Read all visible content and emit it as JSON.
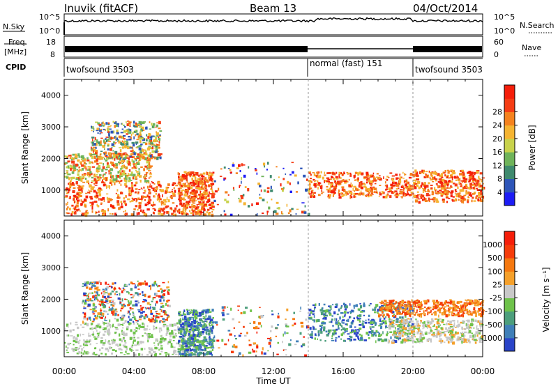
{
  "header": {
    "station": "Inuvik (fitACF)",
    "beam": "Beam 13",
    "date": "04/Oct/2014"
  },
  "status_panels": {
    "nsky": {
      "label": "N.Sky",
      "tick_top": "10^5",
      "tick_bottom": "10^0"
    },
    "nsearch": {
      "label": "N.Search",
      "tick_top": "10^5",
      "tick_bottom": "10^0"
    },
    "freq": {
      "label_line1": "Freq.",
      "label_line2": "[MHz]",
      "tick_top": "18",
      "tick_bottom": "8"
    },
    "nave": {
      "label": "Nave",
      "tick_top": "60",
      "tick_bottom": "0"
    },
    "cpid": {
      "label": "CPID",
      "modes": [
        {
          "name": "twofsound 3503",
          "start_hour": 0,
          "end_hour": 14
        },
        {
          "name": "normal (fast) 151",
          "start_hour": 14,
          "end_hour": 20
        },
        {
          "name": "twofsound 3503",
          "start_hour": 20,
          "end_hour": 24
        }
      ]
    }
  },
  "axes": {
    "ylabel": "Slant Range [km]",
    "xlabel": "Time UT",
    "x_ticks": [
      "00:00",
      "04:00",
      "08:00",
      "12:00",
      "16:00",
      "20:00",
      "00:00"
    ],
    "y_ticks": [
      "1000",
      "2000",
      "3000",
      "4000"
    ]
  },
  "chart_data": [
    {
      "type": "heatmap",
      "panel": "power",
      "xlabel": "",
      "ylabel": "Slant Range [km]",
      "x_range_hours": [
        0,
        24
      ],
      "ylim_km": [
        180,
        4500
      ],
      "colorbar": {
        "label": "Power [dB]",
        "ticks": [
          "4",
          "8",
          "12",
          "16",
          "20",
          "24",
          "28"
        ],
        "colors": [
          "#1c1cf5",
          "#2d55b8",
          "#3f8a6e",
          "#6fb35a",
          "#c8d24b",
          "#f5b432",
          "#f5821e",
          "#f53c14",
          "#f51e0a"
        ]
      },
      "regions": [
        {
          "t0": 0.0,
          "t1": 6.5,
          "r0": 250,
          "r1": 1300,
          "level": "high"
        },
        {
          "t0": 0.0,
          "t1": 5.0,
          "r0": 1300,
          "r1": 2200,
          "level": "medium"
        },
        {
          "t0": 1.5,
          "t1": 5.5,
          "r0": 2000,
          "r1": 3200,
          "level": "mixed"
        },
        {
          "t0": 6.5,
          "t1": 8.5,
          "r0": 250,
          "r1": 1600,
          "level": "high"
        },
        {
          "t0": 8.5,
          "t1": 14.0,
          "r0": 250,
          "r1": 1900,
          "level": "sparse"
        },
        {
          "t0": 14.0,
          "t1": 20.0,
          "r0": 800,
          "r1": 1600,
          "level": "high"
        },
        {
          "t0": 20.0,
          "t1": 24.0,
          "r0": 650,
          "r1": 1650,
          "level": "high"
        }
      ]
    },
    {
      "type": "heatmap",
      "panel": "velocity",
      "xlabel": "Time UT",
      "ylabel": "Slant Range [km]",
      "x_range_hours": [
        0,
        24
      ],
      "ylim_km": [
        180,
        4500
      ],
      "colorbar": {
        "label": "Velocity [m s⁻¹]",
        "ticks": [
          "1000",
          "500",
          "100",
          "25",
          "-25",
          "-100",
          "-500",
          "-1000"
        ],
        "colors": [
          "#2a44c8",
          "#3f7fb8",
          "#4c9e7c",
          "#6ec24a",
          "#c8c8c8",
          "#f5a02a",
          "#f5780f",
          "#f53c0a",
          "#f51e0a"
        ]
      },
      "regions": [
        {
          "t0": 0.0,
          "t1": 7.5,
          "r0": 250,
          "r1": 1300,
          "level": "green-grey"
        },
        {
          "t0": 1.0,
          "t1": 6.0,
          "r0": 1300,
          "r1": 2600,
          "level": "mixed"
        },
        {
          "t0": 6.5,
          "t1": 8.5,
          "r0": 250,
          "r1": 1700,
          "level": "blue-green"
        },
        {
          "t0": 8.5,
          "t1": 14.0,
          "r0": 250,
          "r1": 1800,
          "level": "sparse"
        },
        {
          "t0": 14.0,
          "t1": 20.0,
          "r0": 700,
          "r1": 1900,
          "level": "blue-green"
        },
        {
          "t0": 18.0,
          "t1": 24.0,
          "r0": 1500,
          "r1": 2000,
          "level": "orange"
        },
        {
          "t0": 18.5,
          "t1": 24.0,
          "r0": 650,
          "r1": 1400,
          "level": "grey-green"
        }
      ]
    }
  ]
}
